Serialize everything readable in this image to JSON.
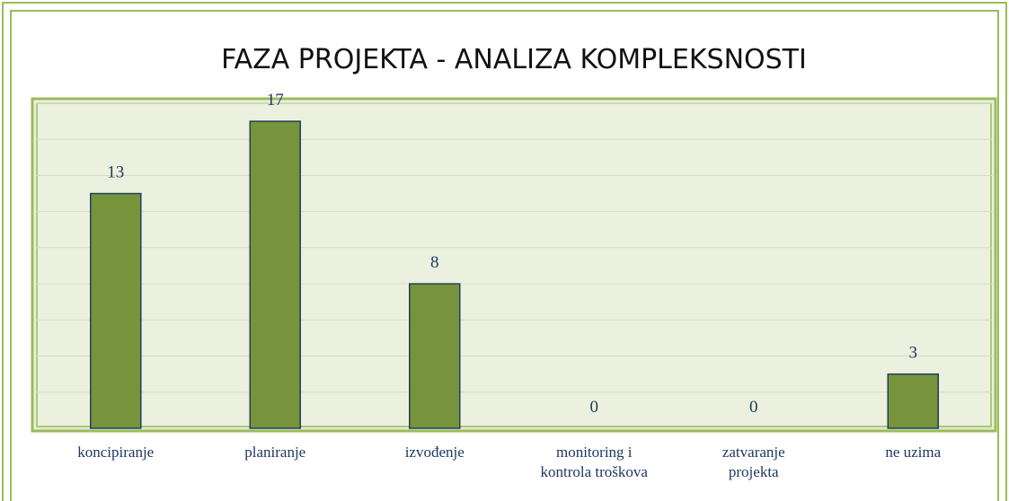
{
  "chart_data": {
    "type": "bar",
    "title": "FAZA PROJEKTA - ANALIZA KOMPLEKSNOSTI",
    "categories": [
      "koncipiranje",
      "planiranje",
      "izvođenje",
      "monitoring i kontrola troškova",
      "zatvaranje projekta",
      "ne uzima"
    ],
    "values": [
      13,
      17,
      8,
      0,
      0,
      3
    ],
    "color": "#77933c",
    "ylim": [
      0,
      18
    ],
    "yticks": [
      0,
      2,
      4,
      6,
      8,
      10,
      12,
      14,
      16,
      18
    ],
    "grid": true
  }
}
